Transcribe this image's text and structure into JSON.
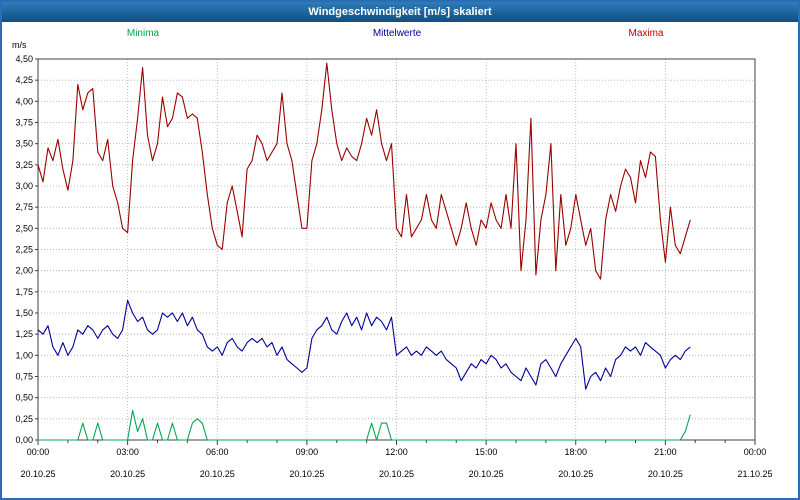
{
  "title": "Windgeschwindigkeit [m/s] skaliert",
  "y_unit_label": "m/s",
  "legend": {
    "minima": "Minima",
    "mittelwerte": "Mittelwerte",
    "maxima": "Maxima"
  },
  "colors": {
    "minima": "#00a651",
    "mittelwerte": "#000099",
    "maxima": "#990000",
    "grid": "#aaaaaa",
    "axis": "#404040",
    "titlebar": "#135e96",
    "window_border": "#2a6db4"
  },
  "chart_data": {
    "type": "line",
    "title": "Windgeschwindigkeit [m/s] skaliert",
    "ylabel": "m/s",
    "ylim": [
      0,
      4.5
    ],
    "y_tick_step": 0.25,
    "y_ticks": [
      "4,50",
      "4,25",
      "4,00",
      "3,75",
      "3,50",
      "3,25",
      "3,00",
      "2,75",
      "2,50",
      "2,25",
      "2,00",
      "1,75",
      "1,50",
      "1,25",
      "1,00",
      "0,75",
      "0,50",
      "0,25",
      "0,00"
    ],
    "xlim_hours": [
      0,
      24
    ],
    "x_axis_ticks": [
      "00:00",
      "03:00",
      "06:00",
      "09:00",
      "12:00",
      "15:00",
      "18:00",
      "21:00",
      "00:00"
    ],
    "x_axis_dates": [
      "20.10.25",
      "20.10.25",
      "20.10.25",
      "20.10.25",
      "20.10.25",
      "20.10.25",
      "20.10.25",
      "20.10.25",
      "21.10.25"
    ],
    "x_step_minutes": 10,
    "grid": "dotted",
    "legend_position": "top",
    "series": [
      {
        "name": "Maxima",
        "color_key": "maxima",
        "values": [
          3.25,
          3.05,
          3.45,
          3.3,
          3.55,
          3.2,
          2.95,
          3.3,
          4.2,
          3.9,
          4.1,
          4.15,
          3.4,
          3.3,
          3.55,
          3.0,
          2.8,
          2.5,
          2.45,
          3.3,
          3.8,
          4.4,
          3.6,
          3.3,
          3.5,
          4.05,
          3.7,
          3.8,
          4.1,
          4.05,
          3.8,
          3.85,
          3.8,
          3.4,
          2.9,
          2.5,
          2.3,
          2.25,
          2.8,
          3.0,
          2.7,
          2.4,
          3.2,
          3.3,
          3.6,
          3.5,
          3.3,
          3.4,
          3.5,
          4.1,
          3.5,
          3.3,
          2.9,
          2.5,
          2.5,
          3.3,
          3.5,
          3.9,
          4.45,
          3.9,
          3.5,
          3.3,
          3.45,
          3.35,
          3.3,
          3.5,
          3.8,
          3.6,
          3.9,
          3.5,
          3.3,
          3.5,
          2.5,
          2.4,
          2.9,
          2.4,
          2.5,
          2.6,
          2.9,
          2.6,
          2.5,
          2.9,
          2.7,
          2.5,
          2.3,
          2.5,
          2.8,
          2.5,
          2.3,
          2.6,
          2.5,
          2.8,
          2.6,
          2.5,
          2.9,
          2.5,
          3.5,
          2.0,
          2.6,
          3.8,
          1.95,
          2.6,
          2.9,
          3.5,
          2.0,
          2.9,
          2.3,
          2.5,
          2.9,
          2.6,
          2.3,
          2.5,
          2.0,
          1.9,
          2.6,
          2.9,
          2.7,
          3.0,
          3.2,
          3.1,
          2.8,
          3.3,
          3.1,
          3.4,
          3.35,
          2.6,
          2.1,
          2.75,
          2.3,
          2.2,
          2.4,
          2.6
        ]
      },
      {
        "name": "Mittelwerte",
        "color_key": "mittelwerte",
        "values": [
          1.3,
          1.25,
          1.35,
          1.1,
          1.0,
          1.15,
          1.0,
          1.1,
          1.3,
          1.25,
          1.35,
          1.3,
          1.2,
          1.3,
          1.35,
          1.25,
          1.2,
          1.3,
          1.65,
          1.5,
          1.4,
          1.45,
          1.3,
          1.25,
          1.3,
          1.5,
          1.45,
          1.5,
          1.4,
          1.5,
          1.35,
          1.45,
          1.3,
          1.25,
          1.1,
          1.05,
          1.1,
          1.0,
          1.15,
          1.2,
          1.1,
          1.05,
          1.15,
          1.2,
          1.15,
          1.2,
          1.1,
          1.15,
          1.0,
          1.1,
          0.95,
          0.9,
          0.85,
          0.8,
          0.85,
          1.2,
          1.3,
          1.35,
          1.45,
          1.3,
          1.25,
          1.4,
          1.5,
          1.35,
          1.45,
          1.3,
          1.5,
          1.35,
          1.45,
          1.4,
          1.3,
          1.45,
          1.0,
          1.05,
          1.1,
          1.0,
          1.05,
          1.0,
          1.1,
          1.05,
          1.0,
          1.05,
          0.95,
          0.9,
          0.85,
          0.7,
          0.8,
          0.9,
          0.85,
          0.95,
          0.9,
          1.0,
          0.95,
          0.85,
          0.9,
          0.8,
          0.75,
          0.7,
          0.85,
          0.75,
          0.65,
          0.9,
          0.95,
          0.85,
          0.75,
          0.9,
          1.0,
          1.1,
          1.2,
          1.1,
          0.6,
          0.75,
          0.8,
          0.7,
          0.85,
          0.75,
          0.95,
          1.0,
          1.1,
          1.05,
          1.1,
          1.0,
          1.15,
          1.1,
          1.05,
          1.0,
          0.85,
          0.95,
          1.0,
          0.95,
          1.05,
          1.1
        ]
      },
      {
        "name": "Minima",
        "color_key": "minima",
        "values": [
          0,
          0,
          0,
          0,
          0,
          0,
          0,
          0,
          0,
          0.2,
          0,
          0,
          0.2,
          0,
          0,
          0,
          0,
          0,
          0,
          0.35,
          0.1,
          0.25,
          0,
          0,
          0.2,
          0,
          0,
          0.2,
          0,
          0,
          0,
          0.2,
          0.25,
          0.2,
          0,
          0,
          0,
          0,
          0,
          0,
          0,
          0,
          0,
          0,
          0,
          0,
          0,
          0,
          0,
          0,
          0,
          0,
          0,
          0,
          0,
          0,
          0,
          0,
          0,
          0,
          0,
          0,
          0,
          0,
          0,
          0,
          0,
          0.2,
          0,
          0.2,
          0.2,
          0,
          0,
          0,
          0,
          0,
          0,
          0,
          0,
          0,
          0,
          0,
          0,
          0,
          0,
          0,
          0,
          0,
          0,
          0,
          0,
          0,
          0,
          0,
          0,
          0,
          0,
          0,
          0,
          0,
          0,
          0,
          0,
          0,
          0,
          0,
          0,
          0,
          0,
          0,
          0,
          0,
          0,
          0,
          0,
          0,
          0,
          0,
          0,
          0,
          0,
          0,
          0,
          0,
          0,
          0,
          0,
          0,
          0,
          0,
          0.1,
          0.3
        ]
      }
    ]
  }
}
